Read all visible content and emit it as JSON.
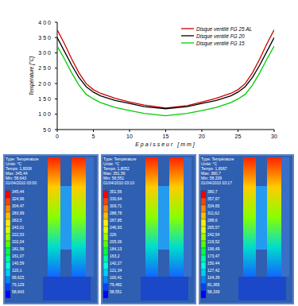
{
  "chart_data": {
    "type": "line",
    "x_label": "Epaisseur [mm]",
    "y_label": "Température [°C]",
    "x": [
      0,
      1,
      2,
      3,
      4,
      5,
      6,
      8,
      10,
      12,
      15,
      18,
      20,
      22,
      24,
      25,
      26,
      27,
      28,
      29,
      30
    ],
    "series": [
      {
        "name": "Disque ventilé FG 25 AL",
        "color": "#cc0000",
        "values": [
          375,
          330,
          280,
          235,
          200,
          180,
          168,
          152,
          140,
          130,
          120,
          128,
          140,
          152,
          168,
          180,
          200,
          235,
          280,
          330,
          375
        ]
      },
      {
        "name": "Disque ventilé FG 20",
        "color": "#000000",
        "values": [
          350,
          305,
          260,
          220,
          190,
          172,
          160,
          145,
          135,
          125,
          118,
          125,
          135,
          145,
          160,
          172,
          190,
          220,
          260,
          305,
          350
        ]
      },
      {
        "name": "Disque ventilé FG 15",
        "color": "#00cc00",
        "values": [
          322,
          280,
          235,
          195,
          165,
          150,
          138,
          122,
          112,
          103,
          95,
          103,
          112,
          122,
          138,
          150,
          165,
          195,
          235,
          280,
          322
        ]
      }
    ],
    "xlim": [
      0,
      30
    ],
    "xticks": [
      0,
      5,
      10,
      15,
      20,
      25,
      30
    ],
    "ylim": [
      50,
      400
    ],
    "yticks": [
      50,
      100,
      150,
      200,
      250,
      300,
      350,
      400
    ],
    "grid": false,
    "legend": "top-right"
  },
  "simulations": [
    {
      "header_lines": [
        "Type: Température",
        "Unité: °C",
        "Temps: 1,8008",
        "Max: 345,44",
        "Min: 58,643",
        "01/04/2010 03:00"
      ],
      "scale_labels": [
        "345,44",
        "324,96",
        "304,47",
        "283,99",
        "263,5",
        "243,01",
        "222,53",
        "202,04",
        "181,56",
        "161,07",
        "140,59",
        "120,1",
        "99,615",
        "79,129",
        "58,643"
      ]
    },
    {
      "header_lines": [
        "Type: Température",
        "Unité: °C",
        "Temps: 1,8052",
        "Max: 351,56",
        "Min: 58,551",
        "01/04/2010 03:10"
      ],
      "scale_labels": [
        "351,56",
        "330,64",
        "309,71",
        "288,78",
        "267,85",
        "246,93",
        "226",
        "205,06",
        "184,13",
        "163,2",
        "142,27",
        "121,34",
        "100,41",
        "79,482",
        "58,551"
      ]
    },
    {
      "header_lines": [
        "Type: Température",
        "Unité: °C",
        "Temps: 1,8067",
        "Max: 380,7",
        "Min: 58,339",
        "01/04/2010 03:17"
      ],
      "scale_labels": [
        "380,7",
        "357,67",
        "334,65",
        "311,62",
        "288,6",
        "265,57",
        "242,54",
        "219,52",
        "196,49",
        "173,47",
        "150,44",
        "127,42",
        "104,39",
        "81,365",
        "58,339"
      ]
    }
  ]
}
